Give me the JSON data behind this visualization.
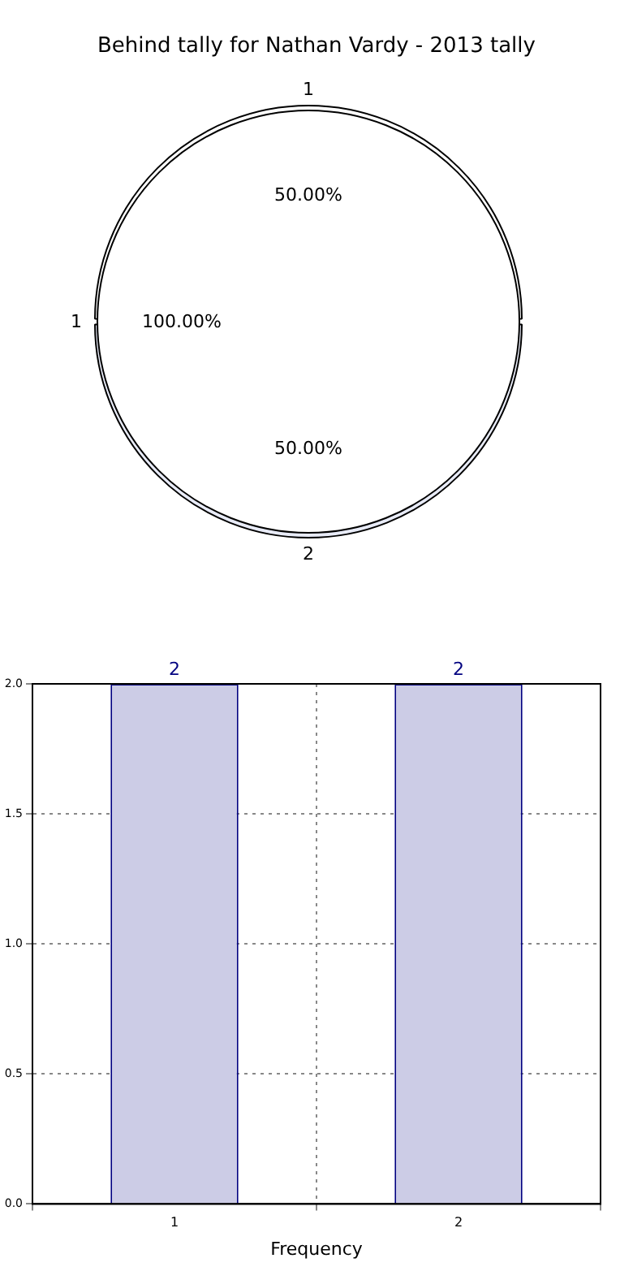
{
  "chart_data": [
    {
      "type": "pie",
      "title": "Behind tally for Nathan Vardy - 2013 tally",
      "categories": [
        "1"
      ],
      "values": [
        100
      ],
      "colors": [
        "#ffffff"
      ],
      "value_labels": [
        "100.00%"
      ]
    },
    {
      "type": "pie",
      "categories": [
        "1",
        "2"
      ],
      "values": [
        50,
        50
      ],
      "colors": [
        "#ffffff",
        "#e8ebf7"
      ],
      "value_labels": [
        "50.00%",
        "50.00%"
      ]
    },
    {
      "type": "bar",
      "xlabel": "Frequency",
      "categories": [
        "1",
        "2"
      ],
      "values": [
        2,
        2
      ],
      "color": "#cccce6",
      "ylim": [
        0,
        2
      ],
      "yticks": [
        {
          "value": 0,
          "label": "0.0"
        },
        {
          "value": 0.5,
          "label": "0.5"
        },
        {
          "value": 1,
          "label": "1.0"
        },
        {
          "value": 1.5,
          "label": "1.5"
        },
        {
          "value": 2,
          "label": "2.0"
        }
      ],
      "grid": true,
      "data_labels": true
    }
  ]
}
